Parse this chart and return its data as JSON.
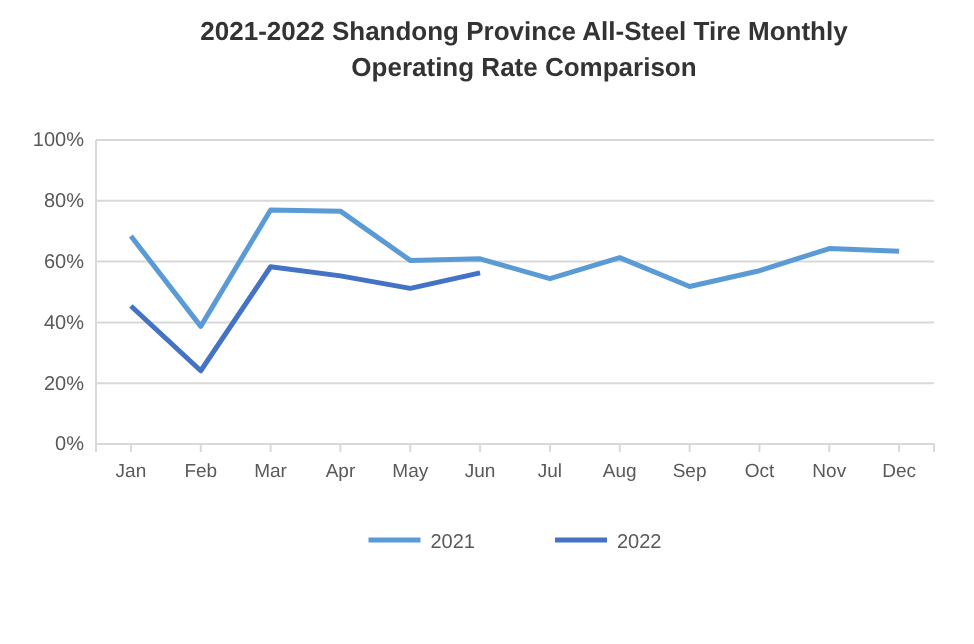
{
  "chart_data": {
    "type": "line",
    "title": "2021-2022  Shandong Province All-Steel Tire Monthly Operating Rate Comparison",
    "categories": [
      "Jan",
      "Feb",
      "Mar",
      "Apr",
      "May",
      "Jun",
      "Jul",
      "Aug",
      "Sep",
      "Oct",
      "Nov",
      "Dec"
    ],
    "series": [
      {
        "name": "2021",
        "color": "#5b9bd5",
        "values": [
          68.4,
          38.7,
          77,
          76.6,
          60.4,
          60.9,
          54.4,
          61.3,
          51.8,
          57,
          64.3,
          63.4
        ]
      },
      {
        "name": "2022",
        "color": "#4472c4",
        "values": [
          45.4,
          24.1,
          58.3,
          55.3,
          51.2,
          56.3,
          null,
          null,
          null,
          null,
          null,
          null
        ]
      }
    ],
    "ylim": [
      0,
      100
    ],
    "yticks": [
      {
        "value": 0,
        "label": "0%"
      },
      {
        "value": 20,
        "label": "20%"
      },
      {
        "value": 40,
        "label": "40%"
      },
      {
        "value": 60,
        "label": "60%"
      },
      {
        "value": 80,
        "label": "80%"
      },
      {
        "value": 100,
        "label": "100%"
      }
    ],
    "grid": "y",
    "legend": "bottom",
    "marker": "none",
    "line_style": "solid"
  }
}
